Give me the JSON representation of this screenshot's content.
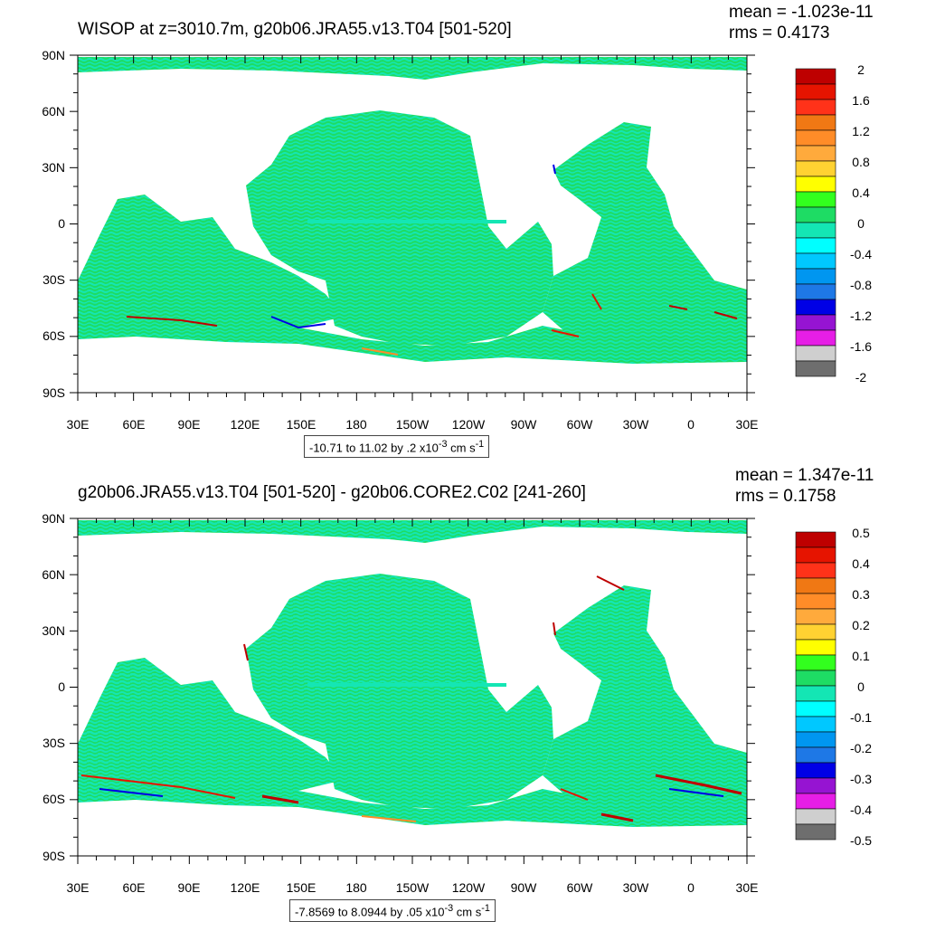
{
  "colors": {
    "palette": [
      "#6e6e6e",
      "#cfcfcf",
      "#e61ee6",
      "#9614d2",
      "#0000e6",
      "#1e78e6",
      "#0096f0",
      "#00c8ff",
      "#00ffff",
      "#14e6b4",
      "#1edc64",
      "#32ff1e",
      "#ffff00",
      "#ffd232",
      "#ffaa3c",
      "#ff8c28",
      "#f07814",
      "#ff3219",
      "#e61400",
      "#be0000"
    ],
    "ocean_main": "#1edc64",
    "ocean_alt": "#14e6b4",
    "land": "#ffffff"
  },
  "lat_labels": [
    "90N",
    "60N",
    "30N",
    "0",
    "30S",
    "60S",
    "90S"
  ],
  "lon_labels": [
    "30E",
    "60E",
    "90E",
    "120E",
    "150E",
    "180",
    "150W",
    "120W",
    "90W",
    "60W",
    "30W",
    "0",
    "30E"
  ],
  "panels": [
    {
      "title": "WISOP at z=3010.7m, g20b06.JRA55.v13.T04 [501-520]",
      "mean": "mean = -1.023e-11",
      "rms": "rms = 0.4173",
      "colorbar_labels": [
        "2",
        "1.6",
        "1.2",
        "0.8",
        "0.4",
        "0",
        "-0.4",
        "-0.8",
        "-1.2",
        "-1.6",
        "-2"
      ],
      "contour_info": {
        "prefix": "-10.71 to 11.02 by .2 x10",
        "exp": "-3",
        "unit": " cm s",
        "unit_exp": "-1"
      }
    },
    {
      "title": "g20b06.JRA55.v13.T04 [501-520] - g20b06.CORE2.C02 [241-260]",
      "mean": "mean = 1.347e-11",
      "rms": "rms = 0.1758",
      "colorbar_labels": [
        "0.5",
        "0.4",
        "0.3",
        "0.2",
        "0.1",
        "0",
        "-0.1",
        "-0.2",
        "-0.3",
        "-0.4",
        "-0.5"
      ],
      "contour_info": {
        "prefix": "-7.8569 to 8.0944 by .05 x10",
        "exp": "-3",
        "unit": " cm s",
        "unit_exp": "-1"
      }
    }
  ]
}
